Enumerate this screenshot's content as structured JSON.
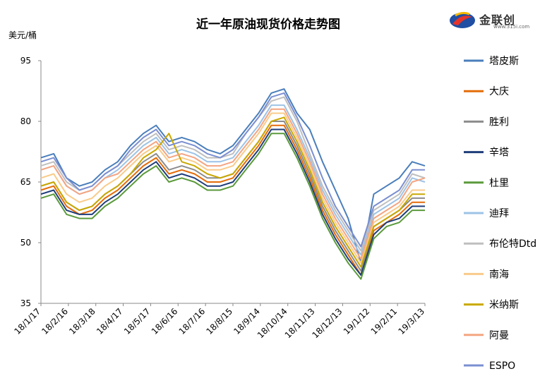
{
  "title": "近一年原油现货价格走势图",
  "unit_label": "美元/桶",
  "logo": {
    "text": "金联创",
    "sub": "www.315i.com"
  },
  "chart_data": {
    "type": "line",
    "ylim": [
      35,
      95
    ],
    "y_ticks": [
      35,
      50,
      65,
      80,
      95
    ],
    "x_tick_labels": [
      "18/1/17",
      "18/2/16",
      "18/3/18",
      "18/4/17",
      "18/5/17",
      "18/6/16",
      "18/7/16",
      "18/8/15",
      "18/9/14",
      "18/10/14",
      "18/11/13",
      "18/12/13",
      "19/1/12",
      "19/2/11",
      "19/3/13"
    ],
    "grid": false,
    "legend_position": "right",
    "x": [
      "18/1/17",
      "18/2/1",
      "18/2/16",
      "18/3/3",
      "18/3/18",
      "18/4/2",
      "18/4/17",
      "18/5/2",
      "18/5/17",
      "18/6/1",
      "18/6/16",
      "18/7/1",
      "18/7/16",
      "18/7/31",
      "18/8/15",
      "18/8/30",
      "18/9/14",
      "18/9/29",
      "18/10/3",
      "18/10/14",
      "18/10/29",
      "18/11/13",
      "18/11/28",
      "18/12/13",
      "18/12/24",
      "19/1/1",
      "19/1/12",
      "19/1/27",
      "19/2/11",
      "19/2/26",
      "19/3/13"
    ],
    "series": [
      {
        "name": "塔皮斯",
        "color": "#4a7ebb",
        "values": [
          71,
          72,
          66,
          64,
          65,
          68,
          70,
          74,
          77,
          79,
          75,
          76,
          75,
          73,
          72,
          74,
          78,
          82,
          87,
          88,
          82,
          78,
          70,
          63,
          56,
          45,
          62,
          64,
          66,
          70,
          69
        ]
      },
      {
        "name": "大庆",
        "color": "#e36c0a",
        "values": [
          63,
          64,
          59,
          57,
          58,
          61,
          63,
          66,
          69,
          71,
          67,
          68,
          67,
          65,
          65,
          66,
          70,
          74,
          79,
          79,
          73,
          66,
          58,
          52,
          47,
          42,
          53,
          55,
          57,
          60,
          60
        ]
      },
      {
        "name": "胜利",
        "color": "#8c8c8c",
        "values": [
          64,
          65,
          60,
          58,
          59,
          62,
          64,
          67,
          70,
          72,
          68,
          69,
          68,
          66,
          66,
          67,
          71,
          75,
          80,
          80,
          74,
          67,
          59,
          53,
          48,
          43,
          54,
          56,
          58,
          61,
          61
        ]
      },
      {
        "name": "辛塔",
        "color": "#1f3d7a",
        "values": [
          62,
          63,
          58,
          57,
          57,
          60,
          62,
          65,
          68,
          70,
          66,
          67,
          66,
          64,
          64,
          65,
          69,
          73,
          78,
          78,
          72,
          65,
          57,
          51,
          46,
          42,
          52,
          55,
          56,
          59,
          59
        ]
      },
      {
        "name": "杜里",
        "color": "#5b9a3b",
        "values": [
          61,
          62,
          57,
          56,
          56,
          59,
          61,
          64,
          67,
          69,
          65,
          66,
          65,
          63,
          63,
          64,
          68,
          72,
          77,
          77,
          71,
          64,
          56,
          50,
          45,
          41,
          51,
          54,
          55,
          58,
          58
        ]
      },
      {
        "name": "迪拜",
        "color": "#9dc3e6",
        "values": [
          68,
          69,
          64,
          62,
          63,
          66,
          68,
          71,
          74,
          76,
          72,
          73,
          72,
          70,
          70,
          71,
          75,
          79,
          84,
          84,
          78,
          71,
          63,
          57,
          52,
          47,
          57,
          59,
          61,
          66,
          65
        ]
      },
      {
        "name": "布伦特Dtd",
        "color": "#bfbfbf",
        "values": [
          69,
          70,
          65,
          63,
          64,
          67,
          69,
          72,
          75,
          77,
          73,
          74,
          73,
          71,
          71,
          72,
          77,
          81,
          85,
          86,
          80,
          72,
          64,
          58,
          53,
          48,
          58,
          60,
          62,
          67,
          66
        ]
      },
      {
        "name": "南海",
        "color": "#f9cb8a",
        "values": [
          66,
          67,
          62,
          60,
          61,
          64,
          66,
          69,
          72,
          74,
          70,
          71,
          70,
          68,
          68,
          69,
          73,
          77,
          82,
          82,
          76,
          69,
          61,
          55,
          50,
          45,
          55,
          57,
          59,
          63,
          63
        ]
      },
      {
        "name": "米纳斯",
        "color": "#c9a800",
        "values": [
          64,
          65,
          60,
          58,
          59,
          62,
          64,
          67,
          71,
          73,
          77,
          70,
          69,
          67,
          66,
          67,
          71,
          75,
          80,
          81,
          75,
          68,
          60,
          54,
          49,
          44,
          54,
          56,
          58,
          62,
          62
        ]
      },
      {
        "name": "阿曼",
        "color": "#f4a582",
        "values": [
          68,
          69,
          64,
          62,
          63,
          66,
          67,
          70,
          73,
          75,
          71,
          72,
          71,
          69,
          69,
          70,
          74,
          78,
          83,
          83,
          77,
          70,
          62,
          56,
          51,
          46,
          56,
          58,
          60,
          65,
          66
        ]
      },
      {
        "name": "ESPO",
        "color": "#7b8fd1",
        "values": [
          70,
          71,
          66,
          63,
          64,
          67,
          69,
          73,
          76,
          78,
          74,
          75,
          74,
          72,
          71,
          73,
          77,
          81,
          86,
          87,
          81,
          74,
          66,
          59,
          54,
          49,
          59,
          61,
          63,
          68,
          68
        ]
      }
    ]
  }
}
